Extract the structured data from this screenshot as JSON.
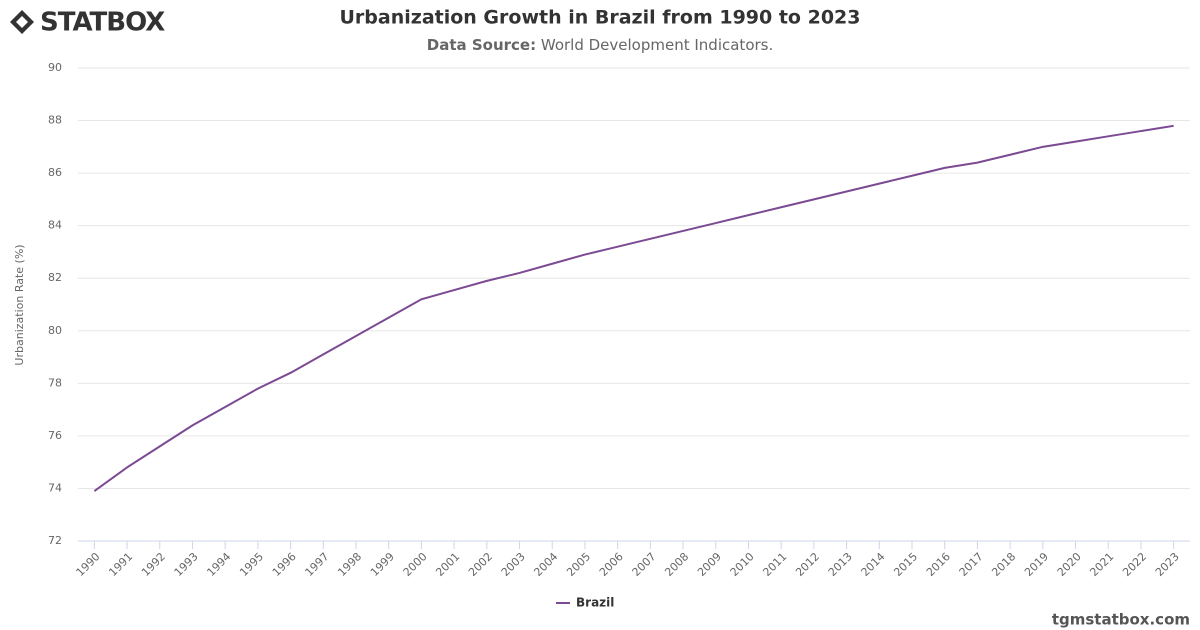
{
  "brand": "STATBOX",
  "footer": "tgmstatbox.com",
  "chart_data": {
    "type": "line",
    "title": "Urbanization Growth in Brazil from 1990 to 2023",
    "subtitle_label": "Data Source:",
    "subtitle": "World Development Indicators.",
    "y_label": "Urbanization Rate (%)",
    "categories": [
      "1990",
      "1991",
      "1992",
      "1993",
      "1994",
      "1995",
      "1996",
      "1997",
      "1998",
      "1999",
      "2000",
      "2001",
      "2002",
      "2003",
      "2004",
      "2005",
      "2006",
      "2007",
      "2008",
      "2009",
      "2010",
      "2011",
      "2012",
      "2013",
      "2014",
      "2015",
      "2016",
      "2017",
      "2018",
      "2019",
      "2020",
      "2021",
      "2022",
      "2023"
    ],
    "series": [
      {
        "name": "Brazil",
        "color": "#7b4a93",
        "values": [
          73.9,
          74.8,
          75.6,
          76.4,
          77.1,
          77.8,
          78.4,
          79.1,
          79.8,
          80.5,
          81.2,
          81.55,
          81.9,
          82.2,
          82.55,
          82.9,
          83.2,
          83.5,
          83.8,
          84.1,
          84.4,
          84.7,
          85.0,
          85.3,
          85.6,
          85.9,
          86.2,
          86.4,
          86.7,
          87.0,
          87.2,
          87.4,
          87.6,
          87.8
        ]
      }
    ],
    "ylim": [
      72,
      90
    ],
    "yticks": [
      72,
      74,
      76,
      78,
      80,
      82,
      84,
      86,
      88,
      90
    ],
    "grid": true,
    "legend": "bottom"
  }
}
